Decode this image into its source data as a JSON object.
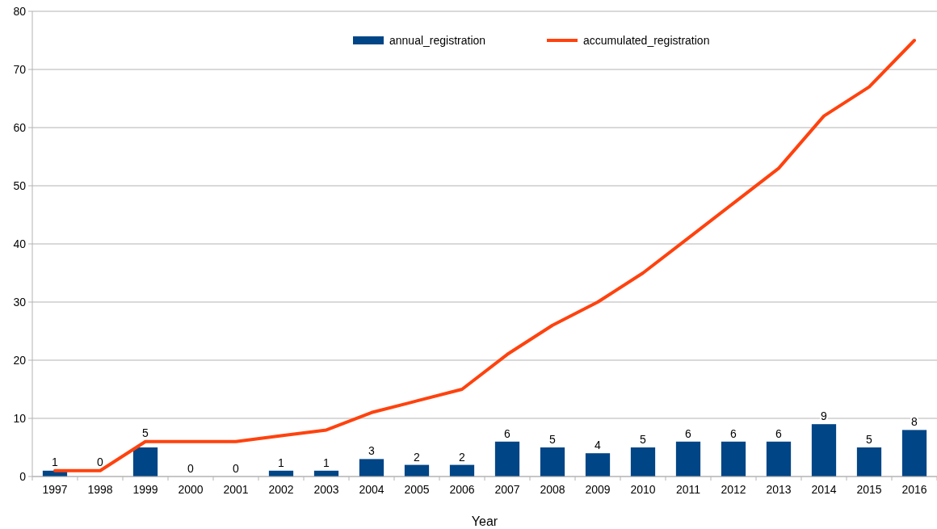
{
  "chart_data": {
    "type": "bar",
    "xlabel": "Year",
    "categories": [
      "1997",
      "1998",
      "1999",
      "2000",
      "2001",
      "2002",
      "2003",
      "2004",
      "2005",
      "2006",
      "2007",
      "2008",
      "2009",
      "2010",
      "2011",
      "2012",
      "2013",
      "2014",
      "2015",
      "2016"
    ],
    "series": [
      {
        "name": "annual_registration",
        "color": "#004586",
        "values": [
          1,
          0,
          5,
          0,
          0,
          1,
          1,
          3,
          2,
          2,
          6,
          5,
          4,
          5,
          6,
          6,
          6,
          9,
          5,
          8
        ],
        "value_labels": [
          "1",
          "0",
          "5",
          "0",
          "0",
          "1",
          "1",
          "3",
          "2",
          "2",
          "6",
          "5",
          "4",
          "5",
          "6",
          "6",
          "6",
          "9",
          "5",
          "8"
        ]
      },
      {
        "name": "accumulated_registration",
        "type": "line",
        "color": "#ff420e",
        "values": [
          1,
          1,
          6,
          6,
          6,
          7,
          8,
          11,
          13,
          15,
          21,
          26,
          30,
          35,
          41,
          47,
          53,
          62,
          67,
          75
        ]
      }
    ],
    "ylim": [
      0,
      80
    ],
    "yticks": [
      0,
      10,
      20,
      30,
      40,
      50,
      60,
      70,
      80
    ],
    "grid": "y",
    "legend": "top",
    "marker": "none",
    "line_style": "solid"
  }
}
